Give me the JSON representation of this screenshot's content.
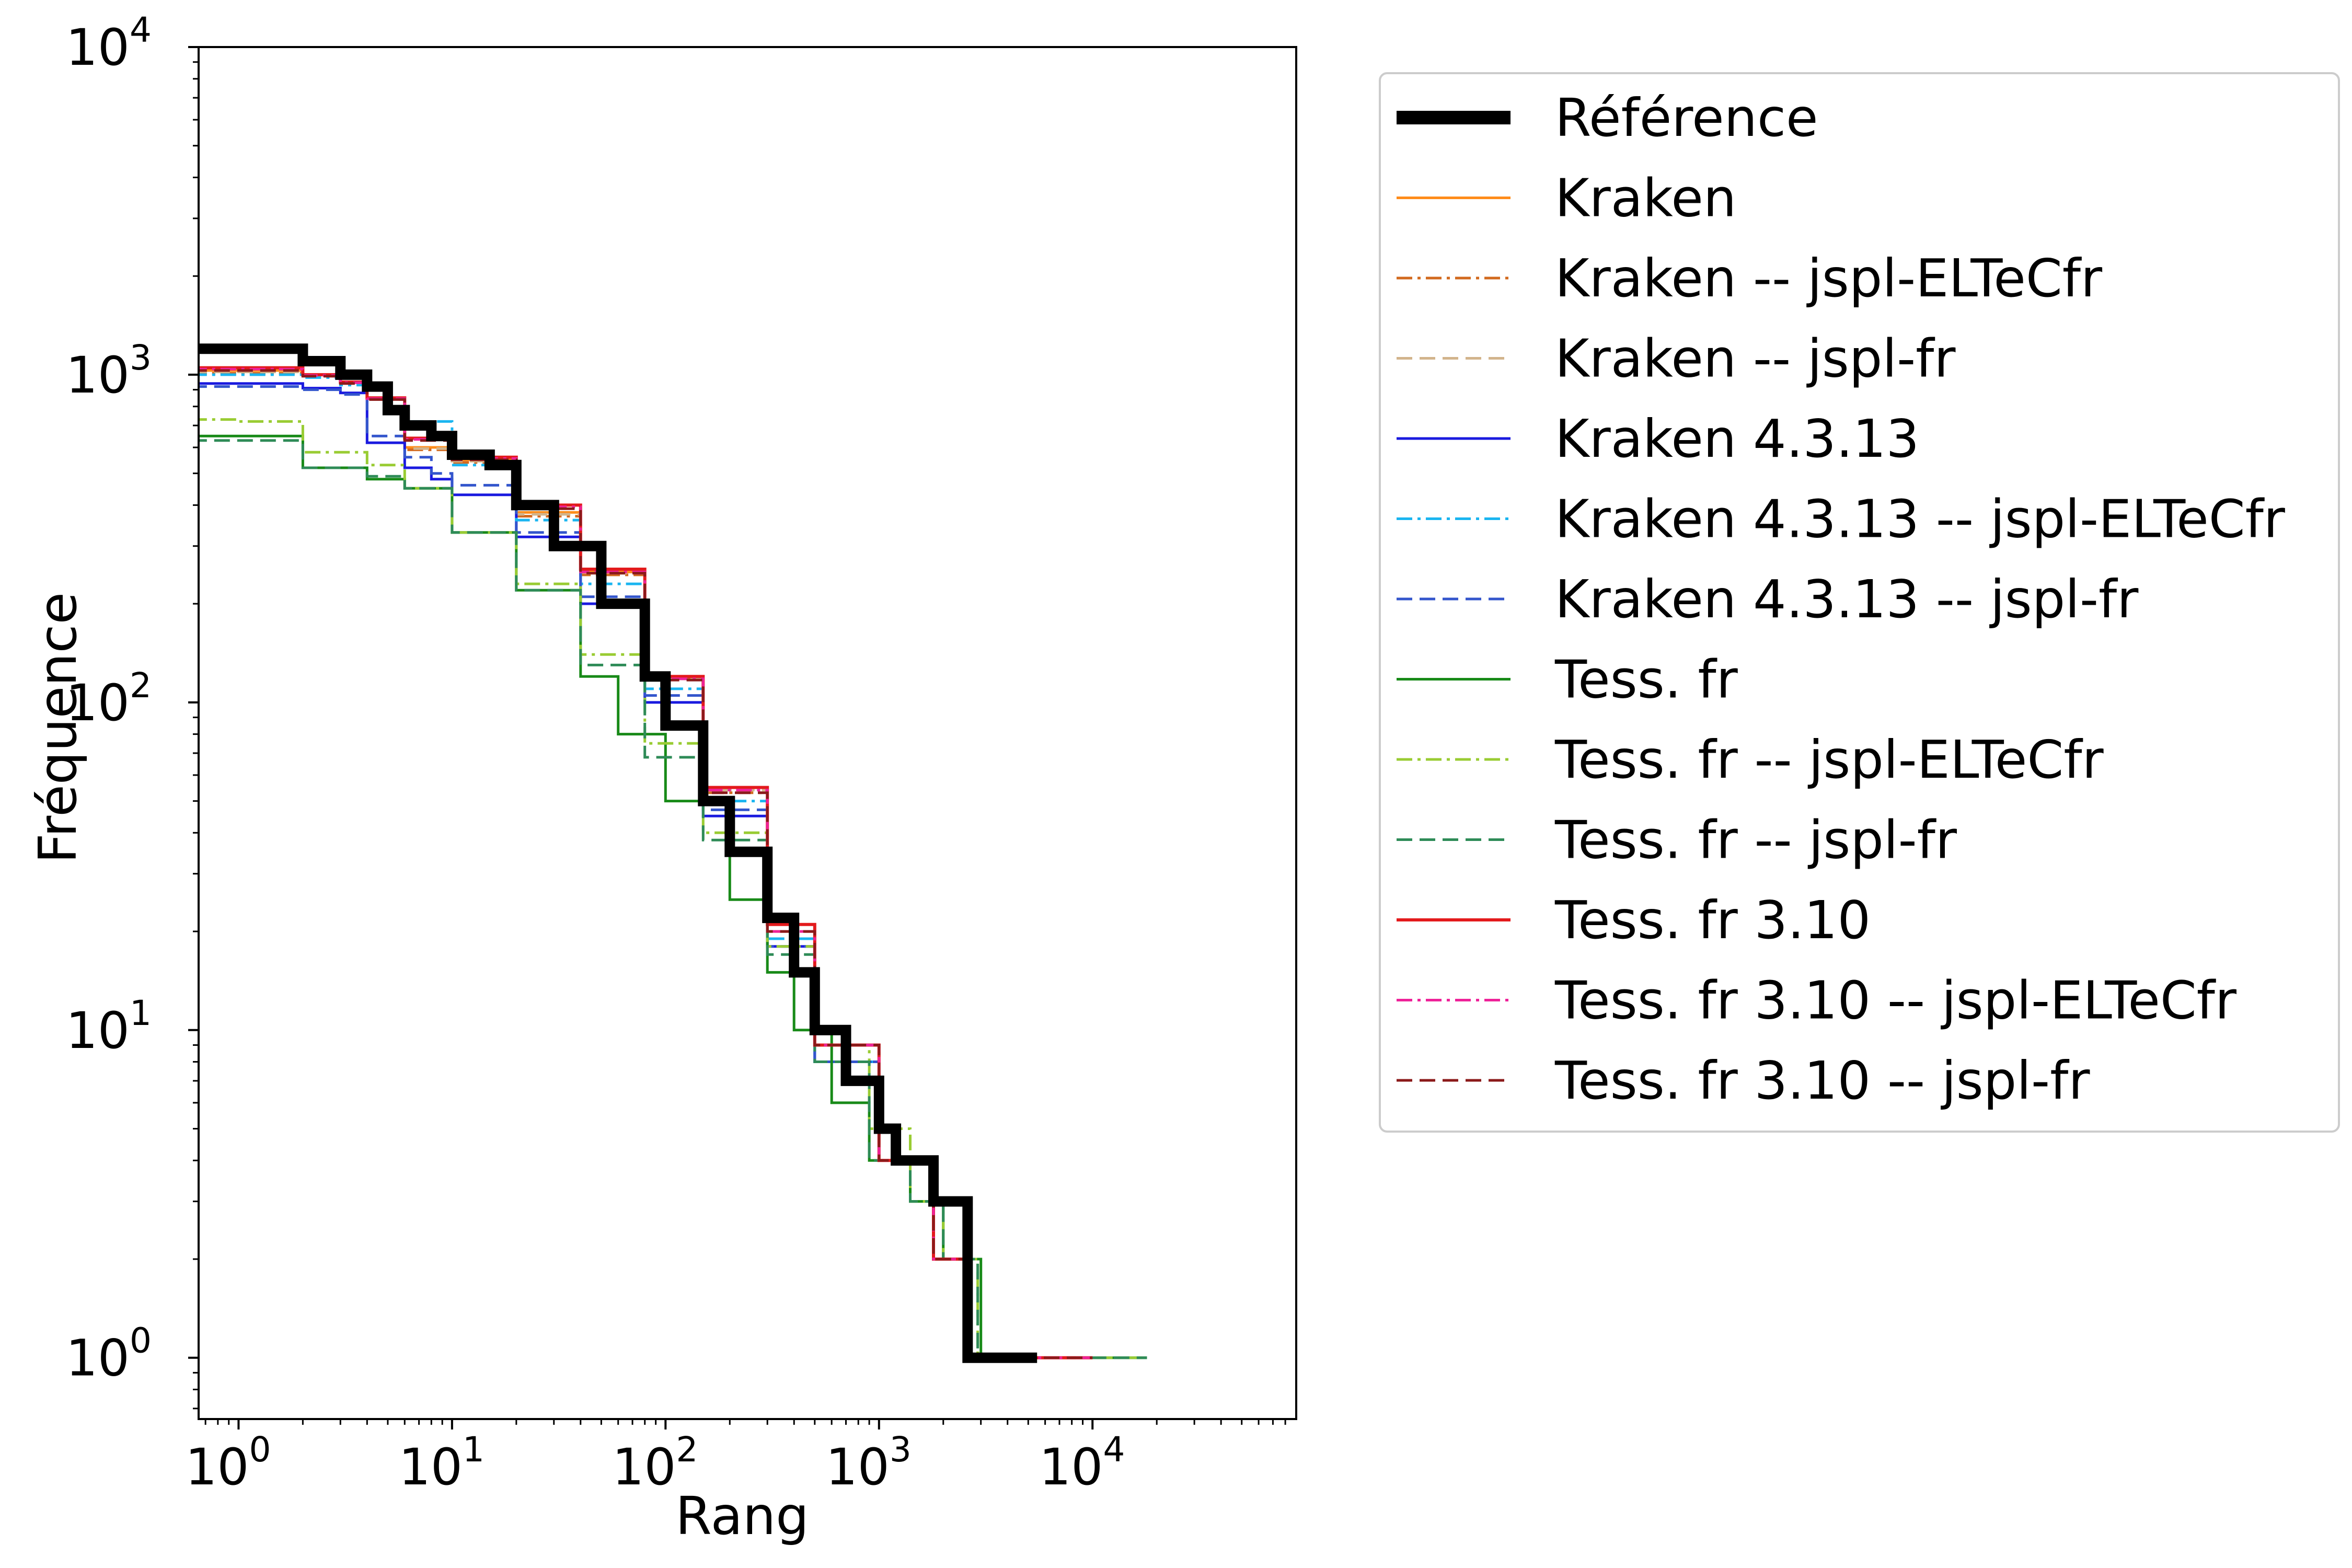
{
  "chart_data": {
    "type": "line",
    "title": "",
    "xlabel": "Rang",
    "ylabel": "Fréquence",
    "xscale": "log",
    "yscale": "log",
    "xlim": [
      0.65,
      90000
    ],
    "ylim": [
      0.65,
      10000
    ],
    "xticks": [
      {
        "base": "10",
        "exp": "0",
        "value": 1
      },
      {
        "base": "10",
        "exp": "1",
        "value": 10
      },
      {
        "base": "10",
        "exp": "2",
        "value": 100
      },
      {
        "base": "10",
        "exp": "3",
        "value": 1000
      },
      {
        "base": "10",
        "exp": "4",
        "value": 10000
      }
    ],
    "yticks": [
      {
        "base": "10",
        "exp": "0",
        "value": 1
      },
      {
        "base": "10",
        "exp": "1",
        "value": 10
      },
      {
        "base": "10",
        "exp": "2",
        "value": 100
      },
      {
        "base": "10",
        "exp": "3",
        "value": 1000
      },
      {
        "base": "10",
        "exp": "4",
        "value": 10000
      }
    ],
    "grid": false,
    "legend_position": "outside-right",
    "series": [
      {
        "name": "Référence",
        "color": "#000000",
        "width": 20,
        "dash": "solid",
        "points": [
          [
            0.6,
            1200
          ],
          [
            1,
            1200
          ],
          [
            2,
            1100
          ],
          [
            3,
            1000
          ],
          [
            4,
            920
          ],
          [
            5,
            780
          ],
          [
            6,
            700
          ],
          [
            8,
            650
          ],
          [
            10,
            570
          ],
          [
            15,
            530
          ],
          [
            20,
            400
          ],
          [
            30,
            300
          ],
          [
            50,
            200
          ],
          [
            80,
            120
          ],
          [
            100,
            85
          ],
          [
            150,
            50
          ],
          [
            200,
            35
          ],
          [
            300,
            22
          ],
          [
            400,
            15
          ],
          [
            500,
            10
          ],
          [
            700,
            7
          ],
          [
            1000,
            5
          ],
          [
            1200,
            4
          ],
          [
            1800,
            3
          ],
          [
            2600,
            2
          ],
          [
            2600,
            1
          ],
          [
            5500,
            1
          ]
        ]
      },
      {
        "name": "Kraken",
        "color": "#ff8c1a",
        "width": 5,
        "dash": "solid",
        "points": [
          [
            0.6,
            1030
          ],
          [
            2,
            1000
          ],
          [
            4,
            850
          ],
          [
            6,
            600
          ],
          [
            10,
            550
          ],
          [
            20,
            380
          ],
          [
            40,
            250
          ],
          [
            80,
            120
          ],
          [
            150,
            55
          ],
          [
            300,
            21
          ],
          [
            500,
            9
          ],
          [
            1000,
            4
          ],
          [
            1800,
            2
          ],
          [
            2500,
            1
          ],
          [
            5000,
            1
          ]
        ]
      },
      {
        "name": "Kraken -- jspl-ELTeCfr",
        "color": "#d2691e",
        "width": 5,
        "dash": "dashdot",
        "points": [
          [
            0.6,
            1010
          ],
          [
            2,
            990
          ],
          [
            4,
            840
          ],
          [
            6,
            590
          ],
          [
            10,
            540
          ],
          [
            20,
            370
          ],
          [
            40,
            245
          ],
          [
            80,
            118
          ],
          [
            150,
            53
          ],
          [
            300,
            20
          ],
          [
            500,
            9
          ],
          [
            1000,
            4
          ],
          [
            1800,
            2
          ],
          [
            2600,
            1
          ],
          [
            7000,
            1
          ]
        ]
      },
      {
        "name": "Kraken -- jspl-fr",
        "color": "#d2b48c",
        "width": 5,
        "dash": "dashed",
        "points": [
          [
            0.6,
            1020
          ],
          [
            2,
            995
          ],
          [
            4,
            845
          ],
          [
            6,
            595
          ],
          [
            10,
            545
          ],
          [
            20,
            375
          ],
          [
            40,
            248
          ],
          [
            80,
            119
          ],
          [
            150,
            54
          ],
          [
            300,
            20
          ],
          [
            500,
            9
          ],
          [
            1000,
            4
          ],
          [
            1800,
            2
          ],
          [
            2600,
            1
          ],
          [
            6000,
            1
          ]
        ]
      },
      {
        "name": "Kraken 4.3.13",
        "color": "#1a1adf",
        "width": 5,
        "dash": "solid",
        "points": [
          [
            0.6,
            940
          ],
          [
            2,
            910
          ],
          [
            3,
            880
          ],
          [
            4,
            620
          ],
          [
            6,
            520
          ],
          [
            8,
            480
          ],
          [
            10,
            430
          ],
          [
            20,
            320
          ],
          [
            40,
            200
          ],
          [
            80,
            100
          ],
          [
            150,
            45
          ],
          [
            300,
            18
          ],
          [
            500,
            8
          ],
          [
            1000,
            4
          ],
          [
            1800,
            2
          ],
          [
            2500,
            1
          ],
          [
            9000,
            1
          ]
        ]
      },
      {
        "name": "Kraken 4.3.13 -- jspl-ELTeCfr",
        "color": "#1ab5f0",
        "width": 5,
        "dash": "dashdot",
        "points": [
          [
            0.6,
            1000
          ],
          [
            2,
            980
          ],
          [
            3,
            930
          ],
          [
            4,
            850
          ],
          [
            6,
            720
          ],
          [
            10,
            530
          ],
          [
            20,
            360
          ],
          [
            40,
            230
          ],
          [
            80,
            110
          ],
          [
            150,
            50
          ],
          [
            300,
            19
          ],
          [
            500,
            8
          ],
          [
            1000,
            4
          ],
          [
            1800,
            2
          ],
          [
            2500,
            1
          ],
          [
            8000,
            1
          ]
        ]
      },
      {
        "name": "Kraken 4.3.13 -- jspl-fr",
        "color": "#3355cc",
        "width": 5,
        "dash": "dashed",
        "points": [
          [
            0.6,
            920
          ],
          [
            2,
            900
          ],
          [
            3,
            870
          ],
          [
            4,
            650
          ],
          [
            6,
            560
          ],
          [
            8,
            500
          ],
          [
            10,
            460
          ],
          [
            20,
            330
          ],
          [
            40,
            210
          ],
          [
            80,
            105
          ],
          [
            150,
            47
          ],
          [
            300,
            18
          ],
          [
            500,
            8
          ],
          [
            1000,
            4
          ],
          [
            1800,
            2
          ],
          [
            2500,
            1
          ],
          [
            9000,
            1
          ]
        ]
      },
      {
        "name": "Tess. fr",
        "color": "#188a18",
        "width": 5,
        "dash": "solid",
        "points": [
          [
            0.6,
            650
          ],
          [
            1,
            650
          ],
          [
            2,
            520
          ],
          [
            4,
            480
          ],
          [
            6,
            450
          ],
          [
            10,
            330
          ],
          [
            20,
            220
          ],
          [
            40,
            120
          ],
          [
            60,
            80
          ],
          [
            100,
            50
          ],
          [
            200,
            25
          ],
          [
            300,
            15
          ],
          [
            400,
            10
          ],
          [
            600,
            6
          ],
          [
            900,
            4
          ],
          [
            1400,
            3
          ],
          [
            2000,
            2
          ],
          [
            3000,
            2
          ],
          [
            3000,
            1
          ],
          [
            18000,
            1
          ]
        ]
      },
      {
        "name": "Tess. fr -- jspl-ELTeCfr",
        "color": "#99cc33",
        "width": 5,
        "dash": "dashdot",
        "points": [
          [
            0.6,
            730
          ],
          [
            1,
            720
          ],
          [
            2,
            580
          ],
          [
            4,
            530
          ],
          [
            6,
            450
          ],
          [
            10,
            330
          ],
          [
            20,
            230
          ],
          [
            40,
            140
          ],
          [
            80,
            75
          ],
          [
            150,
            40
          ],
          [
            300,
            18
          ],
          [
            500,
            9
          ],
          [
            900,
            5
          ],
          [
            1400,
            3
          ],
          [
            2000,
            2
          ],
          [
            2900,
            2
          ],
          [
            2900,
            1
          ],
          [
            18000,
            1
          ]
        ]
      },
      {
        "name": "Tess. fr -- jspl-fr",
        "color": "#2e8b57",
        "width": 5,
        "dash": "dashed",
        "points": [
          [
            0.6,
            630
          ],
          [
            1,
            630
          ],
          [
            2,
            520
          ],
          [
            4,
            490
          ],
          [
            6,
            450
          ],
          [
            10,
            330
          ],
          [
            20,
            220
          ],
          [
            40,
            130
          ],
          [
            80,
            68
          ],
          [
            150,
            38
          ],
          [
            300,
            17
          ],
          [
            500,
            8
          ],
          [
            900,
            4
          ],
          [
            1400,
            3
          ],
          [
            2000,
            2
          ],
          [
            2900,
            2
          ],
          [
            2900,
            1
          ],
          [
            18000,
            1
          ]
        ]
      },
      {
        "name": "Tess. fr 3.10",
        "color": "#e31a1c",
        "width": 6,
        "dash": "solid",
        "points": [
          [
            0.6,
            1050
          ],
          [
            2,
            1000
          ],
          [
            3,
            950
          ],
          [
            4,
            850
          ],
          [
            6,
            640
          ],
          [
            10,
            560
          ],
          [
            20,
            400
          ],
          [
            40,
            255
          ],
          [
            80,
            120
          ],
          [
            150,
            55
          ],
          [
            300,
            21
          ],
          [
            500,
            9
          ],
          [
            1000,
            4
          ],
          [
            1800,
            2
          ],
          [
            2600,
            1
          ],
          [
            10000,
            1
          ]
        ]
      },
      {
        "name": "Tess. fr 3.10 -- jspl-ELTeCfr",
        "color": "#ee2299",
        "width": 5,
        "dash": "dashdot",
        "points": [
          [
            0.6,
            1040
          ],
          [
            2,
            995
          ],
          [
            3,
            945
          ],
          [
            4,
            845
          ],
          [
            6,
            635
          ],
          [
            10,
            555
          ],
          [
            20,
            395
          ],
          [
            40,
            250
          ],
          [
            80,
            118
          ],
          [
            150,
            54
          ],
          [
            300,
            20
          ],
          [
            500,
            9
          ],
          [
            1000,
            4
          ],
          [
            1800,
            2
          ],
          [
            2600,
            1
          ],
          [
            10000,
            1
          ]
        ]
      },
      {
        "name": "Tess. fr 3.10 -- jspl-fr",
        "color": "#8b1a1a",
        "width": 5,
        "dash": "dashed",
        "points": [
          [
            0.6,
            1030
          ],
          [
            2,
            990
          ],
          [
            3,
            940
          ],
          [
            4,
            840
          ],
          [
            6,
            630
          ],
          [
            10,
            550
          ],
          [
            20,
            390
          ],
          [
            40,
            248
          ],
          [
            80,
            117
          ],
          [
            150,
            53
          ],
          [
            300,
            20
          ],
          [
            500,
            9
          ],
          [
            1000,
            4
          ],
          [
            1800,
            2
          ],
          [
            2600,
            1
          ],
          [
            10000,
            1
          ]
        ]
      }
    ]
  }
}
